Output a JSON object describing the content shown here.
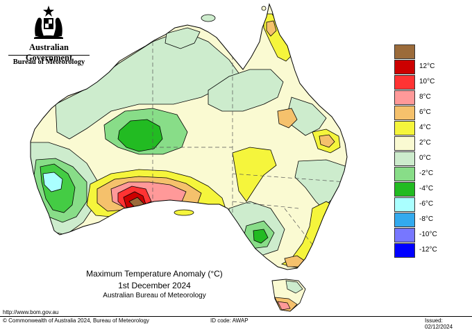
{
  "header": {
    "government": "Australian Government",
    "bureau": "Bureau of Meteorology"
  },
  "title": {
    "line1": "Maximum Temperature Anomaly (°C)",
    "line2": "1st December 2024",
    "line3": "Australian Bureau of Meteorology"
  },
  "legend": {
    "items": [
      {
        "label": "",
        "color": "#9b6b3a"
      },
      {
        "label": "12°C",
        "color": "#cc0000"
      },
      {
        "label": "10°C",
        "color": "#ff3333"
      },
      {
        "label": "8°C",
        "color": "#ff9999"
      },
      {
        "label": "6°C",
        "color": "#f5c16c"
      },
      {
        "label": "4°C",
        "color": "#f5f53c"
      },
      {
        "label": "2°C",
        "color": "#fafad2"
      },
      {
        "label": "0°C",
        "color": "#cdeccd"
      },
      {
        "label": "-2°C",
        "color": "#88dd88"
      },
      {
        "label": "-4°C",
        "color": "#22bb22"
      },
      {
        "label": "-6°C",
        "color": "#aaffff"
      },
      {
        "label": "-8°C",
        "color": "#33aaee"
      },
      {
        "label": "-10°C",
        "color": "#7777ff"
      },
      {
        "label": "-12°C",
        "color": "#0000ff"
      }
    ]
  },
  "footer": {
    "url": "http://www.bom.gov.au",
    "copyright": "© Commonwealth of Australia 2024, Bureau of Meteorology",
    "id_code": "ID code: AWAP",
    "issued": "Issued: 02/12/2024"
  }
}
